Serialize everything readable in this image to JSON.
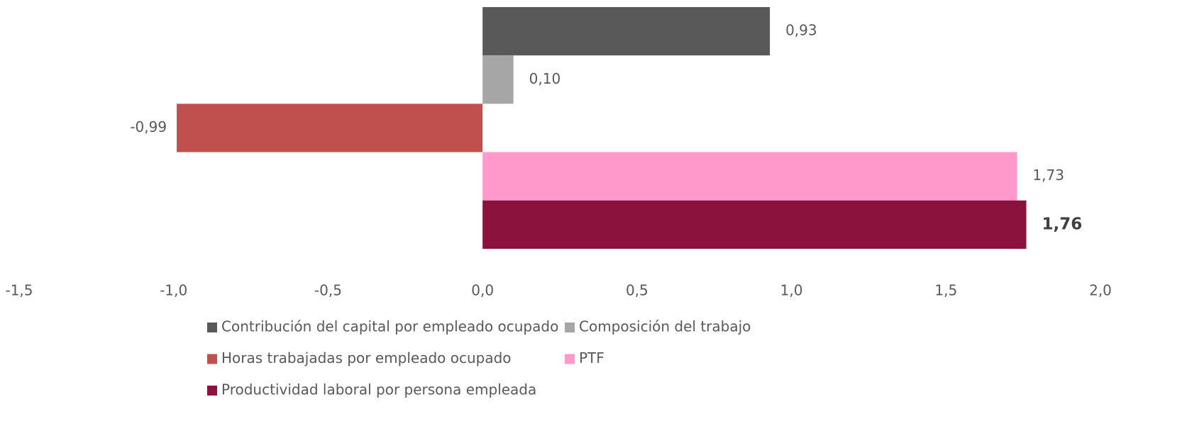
{
  "chart_data": {
    "type": "bar",
    "orientation": "horizontal",
    "series": [
      {
        "name": "Contribución del capital por empleado ocupado",
        "color": "#595959",
        "values": [
          0.93
        ],
        "value_labels": [
          "0,93"
        ]
      },
      {
        "name": "Composición del trabajo",
        "color": "#a6a6a6",
        "values": [
          0.1
        ],
        "value_labels": [
          "0,10"
        ]
      },
      {
        "name": "Horas trabajadas por empleado ocupado",
        "color": "#c0504d",
        "values": [
          -0.99
        ],
        "value_labels": [
          "-0,99"
        ]
      },
      {
        "name": "PTF",
        "color": "#ff99cc",
        "values": [
          1.73
        ],
        "value_labels": [
          "1,73"
        ]
      },
      {
        "name": "Productividad laboral por persona empleada",
        "color": "#8b123c",
        "values": [
          1.76
        ],
        "value_labels": [
          "1,76"
        ]
      }
    ],
    "xlim": [
      -1.5,
      2.0
    ],
    "xticks": [
      {
        "value": -1.5,
        "label": "-1,5"
      },
      {
        "value": -1.0,
        "label": "-1,0"
      },
      {
        "value": -0.5,
        "label": "-0,5"
      },
      {
        "value": 0,
        "label": "0,0"
      },
      {
        "value": 0.5,
        "label": "0,5"
      },
      {
        "value": 1.0,
        "label": "1,0"
      },
      {
        "value": 1.5,
        "label": "1,5"
      },
      {
        "value": 2.0,
        "label": "2,0"
      }
    ],
    "grid": false,
    "legend": "bottom"
  }
}
